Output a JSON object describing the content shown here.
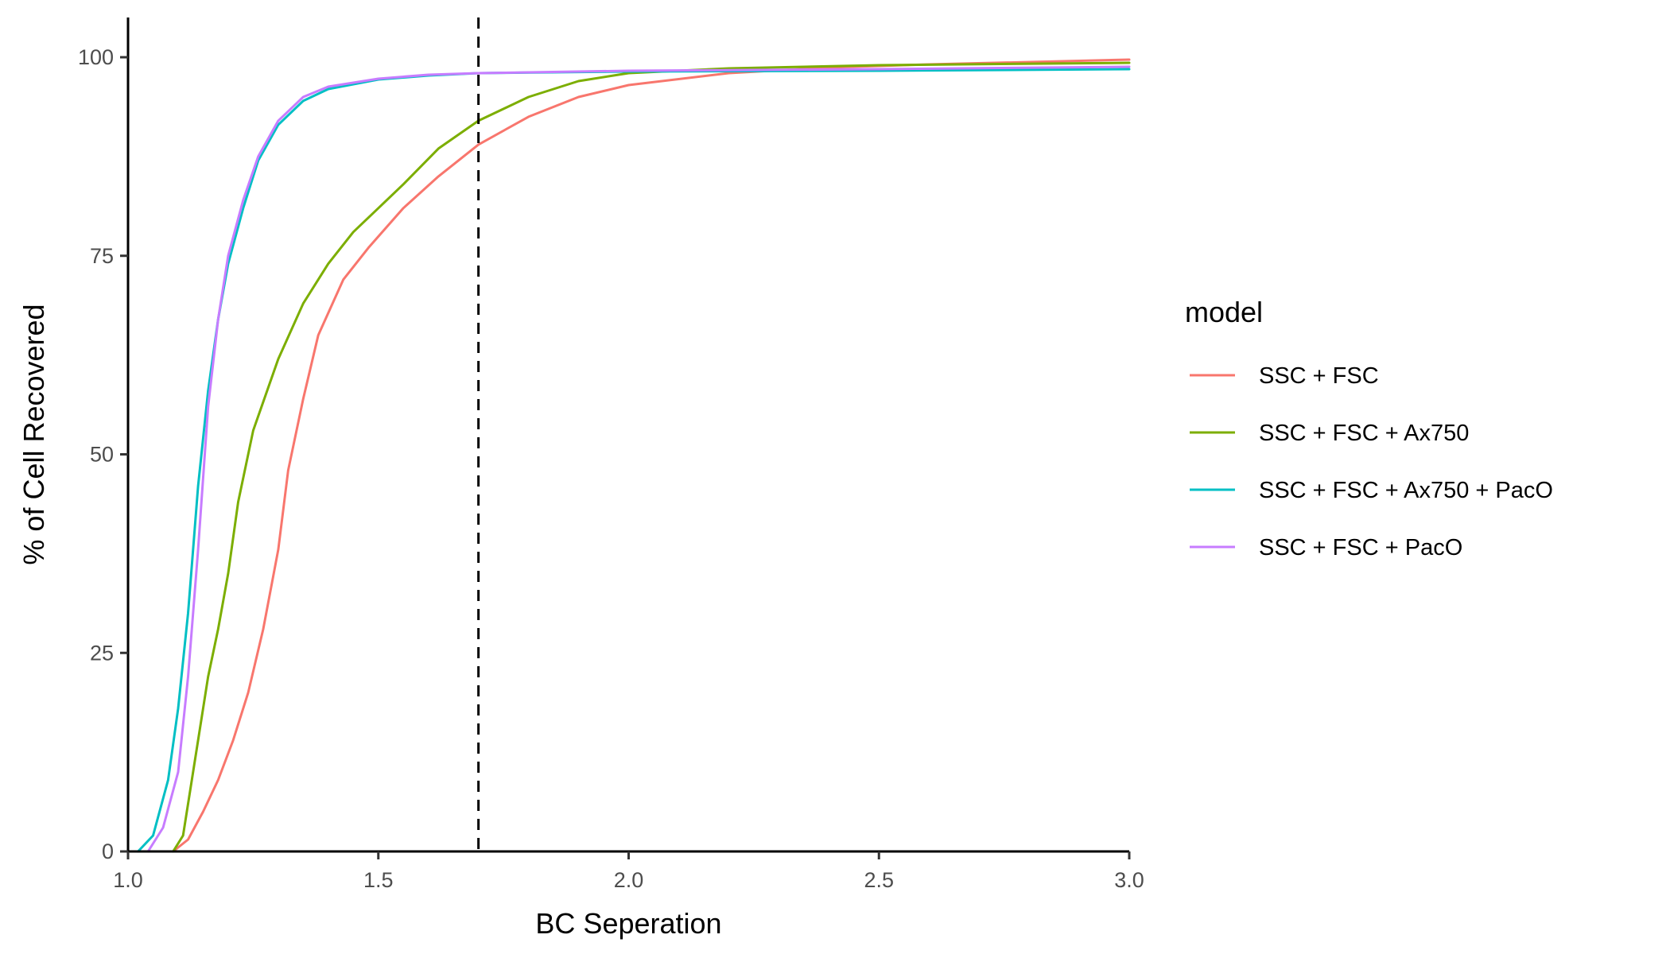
{
  "chart_data": {
    "type": "line",
    "xlabel": "BC Seperation",
    "ylabel": "% of Cell Recovered",
    "xlim": [
      1.0,
      3.0
    ],
    "ylim": [
      0,
      100
    ],
    "x_ticks": [
      "1.0",
      "1.5",
      "2.0",
      "2.5",
      "3.0"
    ],
    "y_ticks": [
      "0",
      "25",
      "50",
      "75",
      "100"
    ],
    "grid": false,
    "legend": {
      "title": "model",
      "placement": "right"
    },
    "reference_lines": [
      {
        "orientation": "vertical",
        "x": 1.7,
        "style": "dashed",
        "color": "#000000"
      }
    ],
    "series": [
      {
        "name": "SSC + FSC",
        "color": "#F8766D",
        "x": [
          1.09,
          1.12,
          1.15,
          1.18,
          1.21,
          1.24,
          1.27,
          1.3,
          1.32,
          1.35,
          1.38,
          1.43,
          1.48,
          1.55,
          1.62,
          1.7,
          1.8,
          1.9,
          2.0,
          2.2,
          2.4,
          2.6,
          3.0
        ],
        "y": [
          0,
          1.5,
          5,
          9,
          14,
          20,
          28,
          38,
          48,
          57,
          65,
          72,
          76,
          81,
          85,
          89,
          92.5,
          95,
          96.5,
          98,
          98.7,
          99.1,
          99.7
        ]
      },
      {
        "name": "SSC + FSC + Ax750",
        "color": "#7CAE00",
        "x": [
          1.09,
          1.11,
          1.13,
          1.15,
          1.16,
          1.18,
          1.2,
          1.22,
          1.25,
          1.3,
          1.35,
          1.4,
          1.45,
          1.5,
          1.55,
          1.62,
          1.7,
          1.8,
          1.9,
          2.0,
          2.2,
          2.5,
          3.0
        ],
        "y": [
          0,
          2,
          10,
          18,
          22,
          28,
          35,
          44,
          53,
          62,
          69,
          74,
          78,
          81,
          84,
          88.5,
          92,
          95,
          97,
          98,
          98.6,
          99,
          99.3
        ]
      },
      {
        "name": "SSC + FSC + Ax750 + PacO",
        "color": "#00BFC4",
        "x": [
          1.02,
          1.05,
          1.08,
          1.1,
          1.12,
          1.14,
          1.16,
          1.18,
          1.2,
          1.23,
          1.26,
          1.3,
          1.35,
          1.4,
          1.5,
          1.6,
          1.7,
          2.0,
          2.5,
          3.0
        ],
        "y": [
          0,
          2,
          9,
          18,
          30,
          46,
          58,
          67,
          74,
          81,
          87,
          91.5,
          94.5,
          96,
          97.2,
          97.7,
          98,
          98.2,
          98.3,
          98.5
        ]
      },
      {
        "name": "SSC + FSC + PacO",
        "color": "#C77CFF",
        "x": [
          1.04,
          1.07,
          1.1,
          1.12,
          1.14,
          1.16,
          1.18,
          1.2,
          1.23,
          1.26,
          1.3,
          1.35,
          1.4,
          1.5,
          1.6,
          1.7,
          2.0,
          2.5,
          3.0
        ],
        "y": [
          0,
          3,
          10,
          22,
          38,
          56,
          67,
          75,
          82,
          87.5,
          92,
          95,
          96.3,
          97.3,
          97.8,
          98,
          98.3,
          98.5,
          98.8
        ]
      }
    ]
  }
}
